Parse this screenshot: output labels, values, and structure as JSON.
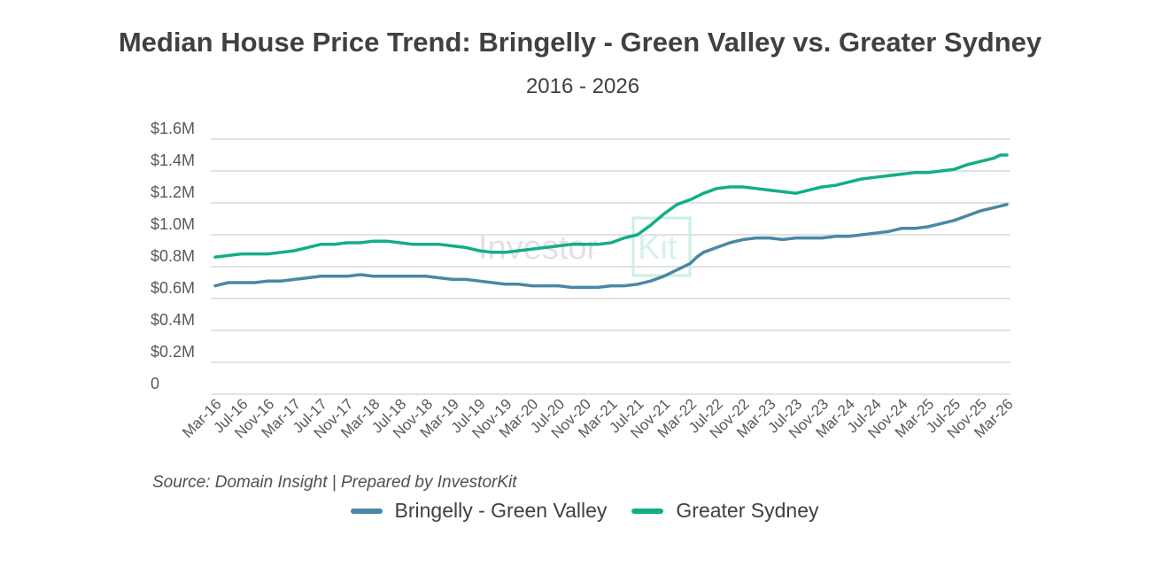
{
  "title": "Median House Price Trend: Bringelly - Green Valley vs. Greater Sydney",
  "subtitle": "2016 - 2026",
  "source": "Source: Domain Insight | Prepared by InvestorKit",
  "watermark": {
    "left": "Investor",
    "right": "Kit"
  },
  "colors": {
    "bringelly": "#4a87a6",
    "sydney": "#13ad87",
    "grid": "#d9d9d9",
    "axis_text": "#595959"
  },
  "chart_data": {
    "type": "line",
    "title": "Median House Price Trend: Bringelly - Green Valley vs. Greater Sydney",
    "subtitle": "2016 - 2026",
    "ylim": [
      0,
      1600000
    ],
    "y_ticks": [
      {
        "value": 0,
        "label": "0"
      },
      {
        "value": 200000,
        "label": "$0.2M"
      },
      {
        "value": 400000,
        "label": "$0.4M"
      },
      {
        "value": 600000,
        "label": "$0.6M"
      },
      {
        "value": 800000,
        "label": "$0.8M"
      },
      {
        "value": 1000000,
        "label": "$1.0M"
      },
      {
        "value": 1200000,
        "label": "$1.2M"
      },
      {
        "value": 1400000,
        "label": "$1.4M"
      },
      {
        "value": 1600000,
        "label": "$1.6M"
      }
    ],
    "x_start": "Mar-16",
    "x_end": "Mar-26",
    "x_ticks": [
      "Mar-16",
      "Jul-16",
      "Nov-16",
      "Mar-17",
      "Jul-17",
      "Nov-17",
      "Mar-18",
      "Jul-18",
      "Nov-18",
      "Mar-19",
      "Jul-19",
      "Nov-19",
      "Mar-20",
      "Jul-20",
      "Nov-20",
      "Mar-21",
      "Jul-21",
      "Nov-21",
      "Mar-22",
      "Jul-22",
      "Nov-22",
      "Mar-23",
      "Jul-23",
      "Nov-23",
      "Mar-24",
      "Jul-24",
      "Nov-24",
      "Mar-25",
      "Jul-25",
      "Nov-25",
      "Mar-26"
    ],
    "grid": true,
    "legend_position": "bottom",
    "series": [
      {
        "name": "Bringelly - Green Valley",
        "color": "#4a87a6",
        "points": [
          [
            "Mar-16",
            680000
          ],
          [
            "May-16",
            700000
          ],
          [
            "Jul-16",
            700000
          ],
          [
            "Sep-16",
            700000
          ],
          [
            "Nov-16",
            710000
          ],
          [
            "Jan-17",
            710000
          ],
          [
            "Mar-17",
            720000
          ],
          [
            "May-17",
            730000
          ],
          [
            "Jul-17",
            740000
          ],
          [
            "Sep-17",
            740000
          ],
          [
            "Nov-17",
            740000
          ],
          [
            "Jan-18",
            750000
          ],
          [
            "Mar-18",
            740000
          ],
          [
            "May-18",
            740000
          ],
          [
            "Jul-18",
            740000
          ],
          [
            "Sep-18",
            740000
          ],
          [
            "Nov-18",
            740000
          ],
          [
            "Jan-19",
            730000
          ],
          [
            "Mar-19",
            720000
          ],
          [
            "May-19",
            720000
          ],
          [
            "Jul-19",
            710000
          ],
          [
            "Sep-19",
            700000
          ],
          [
            "Nov-19",
            690000
          ],
          [
            "Jan-20",
            690000
          ],
          [
            "Mar-20",
            680000
          ],
          [
            "May-20",
            680000
          ],
          [
            "Jul-20",
            680000
          ],
          [
            "Sep-20",
            670000
          ],
          [
            "Nov-20",
            670000
          ],
          [
            "Jan-21",
            670000
          ],
          [
            "Mar-21",
            680000
          ],
          [
            "May-21",
            680000
          ],
          [
            "Jul-21",
            690000
          ],
          [
            "Sep-21",
            710000
          ],
          [
            "Nov-21",
            740000
          ],
          [
            "Jan-22",
            780000
          ],
          [
            "Mar-22",
            820000
          ],
          [
            "Apr-22",
            860000
          ],
          [
            "May-22",
            890000
          ],
          [
            "Jul-22",
            920000
          ],
          [
            "Sep-22",
            950000
          ],
          [
            "Nov-22",
            970000
          ],
          [
            "Jan-23",
            980000
          ],
          [
            "Mar-23",
            980000
          ],
          [
            "May-23",
            970000
          ],
          [
            "Jul-23",
            980000
          ],
          [
            "Sep-23",
            980000
          ],
          [
            "Nov-23",
            980000
          ],
          [
            "Jan-24",
            990000
          ],
          [
            "Mar-24",
            990000
          ],
          [
            "May-24",
            1000000
          ],
          [
            "Jul-24",
            1010000
          ],
          [
            "Sep-24",
            1020000
          ],
          [
            "Nov-24",
            1040000
          ],
          [
            "Jan-25",
            1040000
          ],
          [
            "Mar-25",
            1050000
          ],
          [
            "May-25",
            1070000
          ],
          [
            "Jul-25",
            1090000
          ],
          [
            "Sep-25",
            1120000
          ],
          [
            "Nov-25",
            1150000
          ],
          [
            "Jan-26",
            1170000
          ],
          [
            "Mar-26",
            1190000
          ]
        ]
      },
      {
        "name": "Greater Sydney",
        "color": "#13ad87",
        "points": [
          [
            "Mar-16",
            860000
          ],
          [
            "May-16",
            870000
          ],
          [
            "Jul-16",
            880000
          ],
          [
            "Sep-16",
            880000
          ],
          [
            "Nov-16",
            880000
          ],
          [
            "Jan-17",
            890000
          ],
          [
            "Mar-17",
            900000
          ],
          [
            "May-17",
            920000
          ],
          [
            "Jul-17",
            940000
          ],
          [
            "Sep-17",
            940000
          ],
          [
            "Nov-17",
            950000
          ],
          [
            "Jan-18",
            950000
          ],
          [
            "Mar-18",
            960000
          ],
          [
            "May-18",
            960000
          ],
          [
            "Jul-18",
            950000
          ],
          [
            "Sep-18",
            940000
          ],
          [
            "Nov-18",
            940000
          ],
          [
            "Jan-19",
            940000
          ],
          [
            "Mar-19",
            930000
          ],
          [
            "May-19",
            920000
          ],
          [
            "Jul-19",
            900000
          ],
          [
            "Sep-19",
            890000
          ],
          [
            "Nov-19",
            890000
          ],
          [
            "Jan-20",
            900000
          ],
          [
            "Mar-20",
            910000
          ],
          [
            "May-20",
            920000
          ],
          [
            "Jul-20",
            930000
          ],
          [
            "Sep-20",
            940000
          ],
          [
            "Nov-20",
            940000
          ],
          [
            "Jan-21",
            940000
          ],
          [
            "Mar-21",
            950000
          ],
          [
            "May-21",
            980000
          ],
          [
            "Jul-21",
            1000000
          ],
          [
            "Sep-21",
            1060000
          ],
          [
            "Nov-21",
            1130000
          ],
          [
            "Jan-22",
            1190000
          ],
          [
            "Mar-22",
            1220000
          ],
          [
            "May-22",
            1260000
          ],
          [
            "Jul-22",
            1290000
          ],
          [
            "Sep-22",
            1300000
          ],
          [
            "Nov-22",
            1300000
          ],
          [
            "Jan-23",
            1290000
          ],
          [
            "Mar-23",
            1280000
          ],
          [
            "May-23",
            1270000
          ],
          [
            "Jul-23",
            1260000
          ],
          [
            "Sep-23",
            1280000
          ],
          [
            "Nov-23",
            1300000
          ],
          [
            "Jan-24",
            1310000
          ],
          [
            "Mar-24",
            1330000
          ],
          [
            "May-24",
            1350000
          ],
          [
            "Jul-24",
            1360000
          ],
          [
            "Sep-24",
            1370000
          ],
          [
            "Nov-24",
            1380000
          ],
          [
            "Jan-25",
            1390000
          ],
          [
            "Mar-25",
            1390000
          ],
          [
            "May-25",
            1400000
          ],
          [
            "Jul-25",
            1410000
          ],
          [
            "Sep-25",
            1440000
          ],
          [
            "Nov-25",
            1460000
          ],
          [
            "Jan-26",
            1480000
          ],
          [
            "Feb-26",
            1500000
          ],
          [
            "Mar-26",
            1500000
          ]
        ]
      }
    ]
  }
}
